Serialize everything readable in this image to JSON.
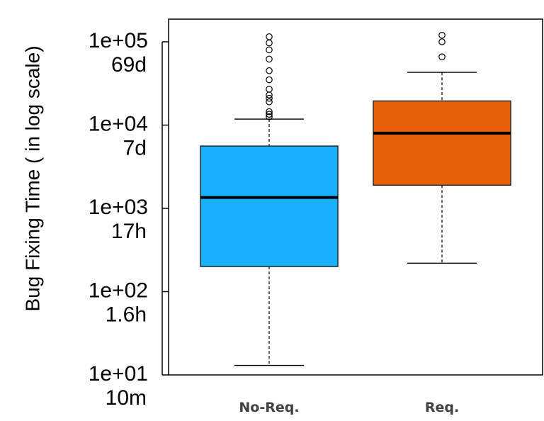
{
  "chart_data": {
    "type": "box",
    "ylabel": "Bug Fixing Time ( in log scale)",
    "yscale": "log",
    "ylim": [
      10,
      200000
    ],
    "y_ticks": [
      {
        "value": 10,
        "label": "1e+01",
        "time_label": "10m"
      },
      {
        "value": 100,
        "label": "1e+02",
        "time_label": "1.6h"
      },
      {
        "value": 1000,
        "label": "1e+03",
        "time_label": "17h"
      },
      {
        "value": 10000,
        "label": "1e+04",
        "time_label": "7d"
      },
      {
        "value": 100000,
        "label": "1e+05",
        "time_label": "69d"
      }
    ],
    "categories": [
      "No-Req.",
      "Req."
    ],
    "boxes": [
      {
        "name": "No-Req.",
        "color": "#1aafff",
        "whisker_low": 13,
        "q1": 200,
        "median": 1350,
        "q3": 5600,
        "whisker_high": 11800,
        "outliers": [
          12600,
          13500,
          14500,
          19000,
          21000,
          23000,
          27000,
          35000,
          45000,
          62000,
          80000,
          97000,
          115000
        ]
      },
      {
        "name": "Req.",
        "color": "#e8600c",
        "whisker_low": 220,
        "q1": 1900,
        "median": 8000,
        "q3": 19500,
        "whisker_high": 43000,
        "outliers": [
          66000,
          100000,
          120000
        ]
      }
    ]
  }
}
